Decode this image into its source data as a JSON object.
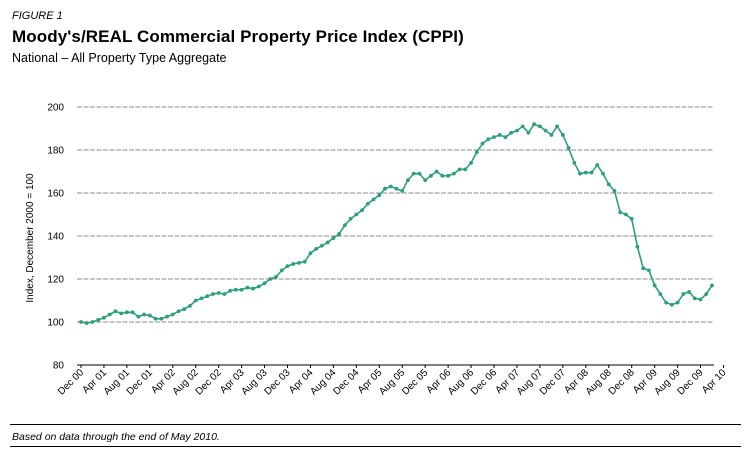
{
  "figure_label": "FIGURE 1",
  "title": "Moody's/REAL Commercial Property Price Index (CPPI)",
  "subtitle": "National – All Property Type Aggregate",
  "footnote": "Based on data through the end of May 2010.",
  "colors": {
    "line": "#2e9e7f",
    "grid": "#8c8c8c",
    "axis": "#000000"
  },
  "chart_data": {
    "type": "line",
    "title": "Moody's/REAL Commercial Property Price Index (CPPI)",
    "subtitle": "National – All Property Type Aggregate",
    "xlabel": "",
    "ylabel": "Index, December 2000 = 100",
    "ylim": [
      80,
      200
    ],
    "yticks": [
      80,
      100,
      120,
      140,
      160,
      180,
      200
    ],
    "grid": true,
    "legend": "none",
    "xtick_labels": [
      "Dec 00",
      "Apr 01",
      "Aug 01",
      "Dec 01",
      "Apr 02",
      "Aug 02",
      "Dec 02",
      "Apr 03",
      "Aug 03",
      "Dec 03",
      "Apr 04",
      "Aug 04",
      "Dec 04",
      "Apr 05",
      "Aug 05",
      "Dec 05",
      "Apr 06",
      "Aug 06",
      "Dec 06",
      "Apr 07",
      "Aug 07",
      "Dec 07",
      "Apr 08",
      "Aug 08",
      "Dec 08",
      "Apr 09",
      "Aug 09",
      "Dec 09",
      "Apr 10"
    ],
    "x_start": "Dec 00",
    "x_end": "Apr 10",
    "series": [
      {
        "name": "CPPI",
        "values": [
          100,
          99.5,
          100,
          101,
          102,
          103.5,
          105,
          104,
          104.5,
          104.5,
          102.5,
          103.5,
          103,
          101.5,
          101.5,
          102.5,
          103.5,
          105,
          106,
          107.5,
          110,
          111,
          112,
          113,
          113.5,
          113,
          114.5,
          115,
          115,
          116,
          115.5,
          116.5,
          118,
          120,
          121,
          124,
          126,
          127,
          127.5,
          128,
          132,
          134,
          135.5,
          137,
          139,
          141,
          145,
          148,
          150,
          152,
          155,
          157,
          159,
          162,
          163,
          162,
          161,
          166,
          169,
          169,
          166,
          168,
          170,
          168,
          168,
          169,
          171,
          171,
          174,
          179,
          183,
          185,
          186,
          187,
          186,
          188,
          189,
          191,
          188,
          192,
          191,
          189,
          187,
          191,
          187,
          181,
          174,
          169,
          169.5,
          169.5,
          173,
          169,
          164,
          161,
          151,
          150,
          148,
          135,
          125,
          124,
          117,
          113,
          109,
          108,
          109,
          113,
          114,
          111,
          110.5,
          113,
          117
        ]
      }
    ]
  }
}
